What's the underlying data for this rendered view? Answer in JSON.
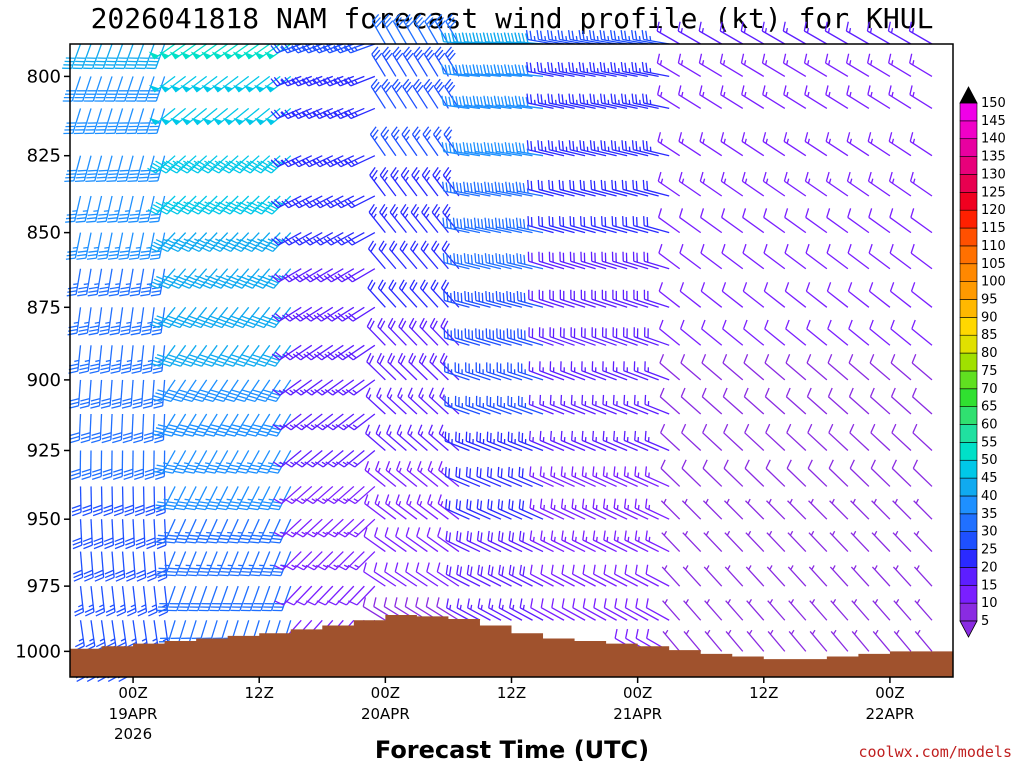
{
  "chart_data": {
    "type": "wind-barb time-height profile",
    "title": "2026041818 NAM forecast wind profile (kt) for KHUL",
    "xlabel": "Forecast Time (UTC)",
    "ylabel": "",
    "credit": "coolwx.com/models",
    "y_axis": {
      "units": "hPa",
      "range": [
        1010,
        790
      ],
      "ticks": [
        "800",
        "825",
        "850",
        "875",
        "900",
        "925",
        "950",
        "975",
        "1000"
      ]
    },
    "x_axis": {
      "units": "hours since 2026-04-18 18Z",
      "range": [
        0,
        84
      ],
      "ticks": [
        {
          "hour": 6,
          "label": "00Z",
          "date": "19APR",
          "year": "2026"
        },
        {
          "hour": 18,
          "label": "12Z",
          "date": "",
          "year": ""
        },
        {
          "hour": 30,
          "label": "00Z",
          "date": "20APR",
          "year": ""
        },
        {
          "hour": 42,
          "label": "12Z",
          "date": "",
          "year": ""
        },
        {
          "hour": 54,
          "label": "00Z",
          "date": "21APR",
          "year": ""
        },
        {
          "hour": 66,
          "label": "12Z",
          "date": "",
          "year": ""
        },
        {
          "hour": 78,
          "label": "00Z",
          "date": "22APR",
          "year": ""
        }
      ]
    },
    "colorbar": {
      "units": "kt",
      "levels": [
        "5",
        "10",
        "15",
        "20",
        "25",
        "30",
        "35",
        "40",
        "45",
        "50",
        "55",
        "60",
        "65",
        "70",
        "75",
        "80",
        "85",
        "90",
        "95",
        "100",
        "105",
        "110",
        "115",
        "120",
        "125",
        "130",
        "135",
        "140",
        "145",
        "150"
      ],
      "colors": [
        "#8a2be2",
        "#7a1fff",
        "#5d1eff",
        "#2a2aff",
        "#1e50ff",
        "#2070ff",
        "#1e90ff",
        "#10aaf0",
        "#00c8e8",
        "#00e0c8",
        "#20e0a0",
        "#30e070",
        "#30e030",
        "#60e020",
        "#a0e000",
        "#e0e000",
        "#ffd800",
        "#ffb800",
        "#ff9a00",
        "#ff8800",
        "#ff7000",
        "#ff5000",
        "#ff2000",
        "#f00020",
        "#e80050",
        "#e8007a",
        "#e800a0",
        "#f000c8",
        "#f000e8",
        "#ff00ff"
      ]
    },
    "terrain": {
      "color": "#a0522d",
      "hours": [
        0,
        3,
        6,
        9,
        12,
        15,
        18,
        21,
        24,
        27,
        30,
        33,
        36,
        39,
        42,
        45,
        48,
        51,
        54,
        57,
        60,
        63,
        66,
        69,
        72,
        75,
        78,
        81,
        84
      ],
      "pressure": [
        999,
        998,
        997,
        996,
        995,
        994,
        993,
        991.5,
        990,
        988,
        986,
        986.5,
        987.5,
        990,
        993,
        995,
        996,
        997,
        998,
        999.5,
        1001,
        1002,
        1003,
        1003,
        1002,
        1001,
        1000,
        1000,
        1000
      ]
    },
    "wind_grid": {
      "hours": [
        0,
        1,
        2,
        3,
        4,
        5,
        6,
        7,
        8,
        9,
        10,
        11,
        12,
        13,
        14,
        15,
        16,
        17,
        18,
        19,
        20,
        21,
        22,
        23,
        24,
        25,
        26,
        27,
        28,
        29,
        30,
        31,
        32,
        33,
        34,
        35,
        36,
        37,
        38,
        39,
        40,
        41,
        42,
        43,
        44,
        45,
        46,
        47,
        48,
        49,
        50,
        51,
        52,
        53,
        54,
        55,
        56,
        57,
        58,
        60,
        62,
        64,
        66,
        68,
        70,
        72,
        74,
        76,
        78,
        80,
        82,
        84
      ],
      "levels_hpa": [
        790,
        800,
        810,
        825,
        838,
        850,
        862,
        875,
        888,
        900,
        912,
        925,
        938,
        950,
        962,
        975,
        988,
        1000
      ],
      "note": "direction (deg from) and speed (kt) estimated by time segment and level",
      "segments": [
        {
          "from": 0,
          "to": 10,
          "dir_low": 170,
          "dir_high": 200,
          "spd_low": 25,
          "spd_high": 40
        },
        {
          "from": 10,
          "to": 22,
          "dir_low": 195,
          "dir_high": 235,
          "spd_low": 30,
          "spd_high": 50
        },
        {
          "from": 22,
          "to": 30,
          "dir_low": 220,
          "dir_high": 250,
          "spd_low": 10,
          "spd_high": 25
        },
        {
          "from": 30,
          "to": 38,
          "dir_low": 300,
          "dir_high": 330,
          "spd_low": 8,
          "spd_high": 30
        },
        {
          "from": 38,
          "to": 46,
          "dir_low": 300,
          "dir_high": 275,
          "spd_low": 15,
          "spd_high": 40
        },
        {
          "from": 46,
          "to": 58,
          "dir_low": 300,
          "dir_high": 280,
          "spd_low": 10,
          "spd_high": 25
        },
        {
          "from": 58,
          "to": 84,
          "dir_low": 320,
          "dir_high": 300,
          "spd_low": 5,
          "spd_high": 15
        }
      ]
    }
  }
}
